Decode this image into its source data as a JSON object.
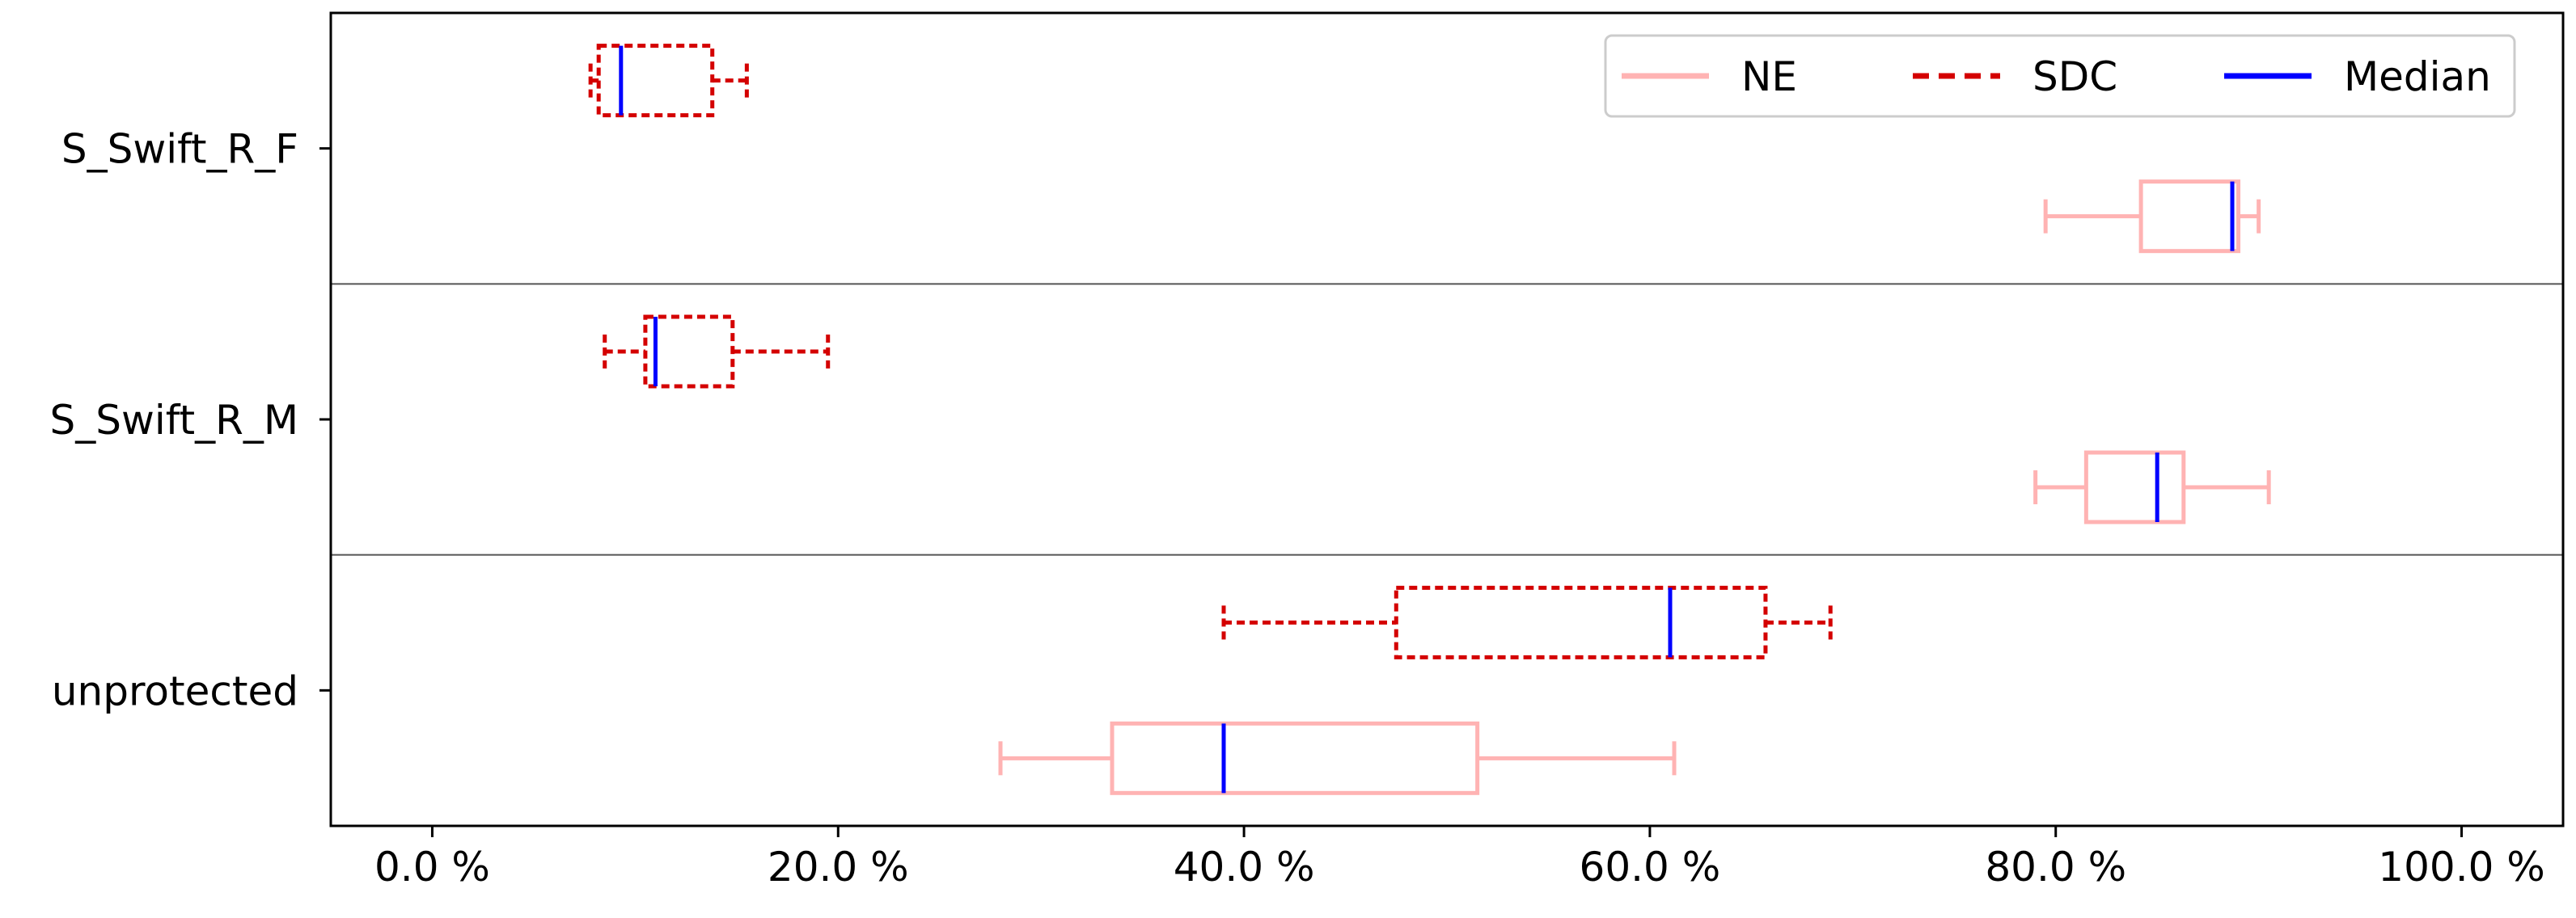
{
  "chart_data": {
    "type": "boxplot",
    "orientation": "horizontal",
    "title": "",
    "xlabel": "",
    "ylabel": "",
    "xlim": [
      -5,
      105
    ],
    "x_ticks": [
      0,
      20,
      40,
      60,
      80,
      100
    ],
    "x_tick_labels": [
      "0.0 %",
      "20.0 %",
      "40.0 %",
      "60.0 %",
      "80.0 %",
      "100.0 %"
    ],
    "categories": [
      "S_Swift_R_F",
      "S_Swift_R_M",
      "unprotected"
    ],
    "grid": false,
    "legend_position": "top-right",
    "legend": [
      {
        "name": "NE",
        "style": "solid",
        "color": "#ffb3b3"
      },
      {
        "name": "SDC",
        "style": "dashed",
        "color": "#d40000"
      },
      {
        "name": "Median",
        "style": "solid",
        "color": "#0000ff"
      }
    ],
    "series": [
      {
        "name": "NE",
        "color": "#ffb3b3",
        "style": "solid",
        "boxes": [
          {
            "category": "S_Swift_R_F",
            "whisker_low": 79.5,
            "q1": 84.2,
            "median": 88.7,
            "q3": 89.0,
            "whisker_high": 90.0
          },
          {
            "category": "S_Swift_R_M",
            "whisker_low": 79.0,
            "q1": 81.5,
            "median": 85.0,
            "q3": 86.3,
            "whisker_high": 90.5
          },
          {
            "category": "unprotected",
            "whisker_low": 28.0,
            "q1": 33.5,
            "median": 39.0,
            "q3": 51.5,
            "whisker_high": 61.2
          }
        ]
      },
      {
        "name": "SDC",
        "color": "#d40000",
        "style": "dashed",
        "boxes": [
          {
            "category": "S_Swift_R_F",
            "whisker_low": 7.8,
            "q1": 8.2,
            "median": 9.3,
            "q3": 13.8,
            "whisker_high": 15.5
          },
          {
            "category": "S_Swift_R_M",
            "whisker_low": 8.5,
            "q1": 10.5,
            "median": 11.0,
            "q3": 14.8,
            "whisker_high": 19.5
          },
          {
            "category": "unprotected",
            "whisker_low": 39.0,
            "q1": 47.5,
            "median": 61.0,
            "q3": 65.7,
            "whisker_high": 68.9
          }
        ]
      }
    ],
    "median_color": "#0000ff"
  }
}
